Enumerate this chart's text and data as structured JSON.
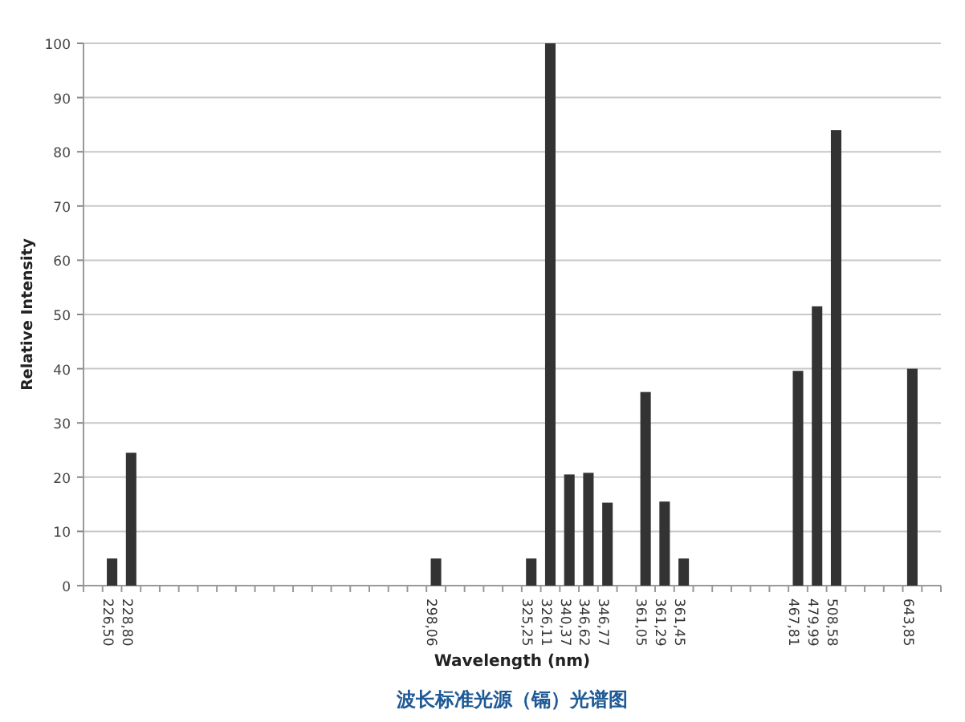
{
  "chart_data": {
    "type": "bar",
    "title": "波长标准光源（镉）光谱图",
    "xlabel": "Wavelength (nm)",
    "ylabel": "Relative Intensity",
    "categories": [
      null,
      "226,50",
      "228,80",
      null,
      null,
      null,
      null,
      null,
      null,
      null,
      null,
      null,
      null,
      null,
      null,
      null,
      null,
      null,
      "298,06",
      null,
      null,
      null,
      null,
      "325,25",
      "326,11",
      "340,37",
      "346,62",
      "346,77",
      null,
      "361,05",
      "361,29",
      "361,45",
      null,
      null,
      null,
      null,
      null,
      "467,81",
      "479,99",
      "508,58",
      null,
      null,
      null,
      "643,85",
      null
    ],
    "values": [
      null,
      5,
      24.5,
      null,
      null,
      null,
      null,
      null,
      null,
      null,
      null,
      null,
      null,
      null,
      null,
      null,
      null,
      null,
      5,
      null,
      null,
      null,
      null,
      5,
      100,
      20.5,
      20.8,
      15.3,
      null,
      35.7,
      15.5,
      5,
      null,
      null,
      null,
      null,
      null,
      39.6,
      51.5,
      84,
      null,
      null,
      null,
      40,
      null
    ],
    "color": "#333333",
    "ylim": [
      0,
      100
    ],
    "yticks": [
      0,
      10,
      20,
      30,
      40,
      50,
      60,
      70,
      80,
      90,
      100
    ],
    "grid": "y"
  }
}
